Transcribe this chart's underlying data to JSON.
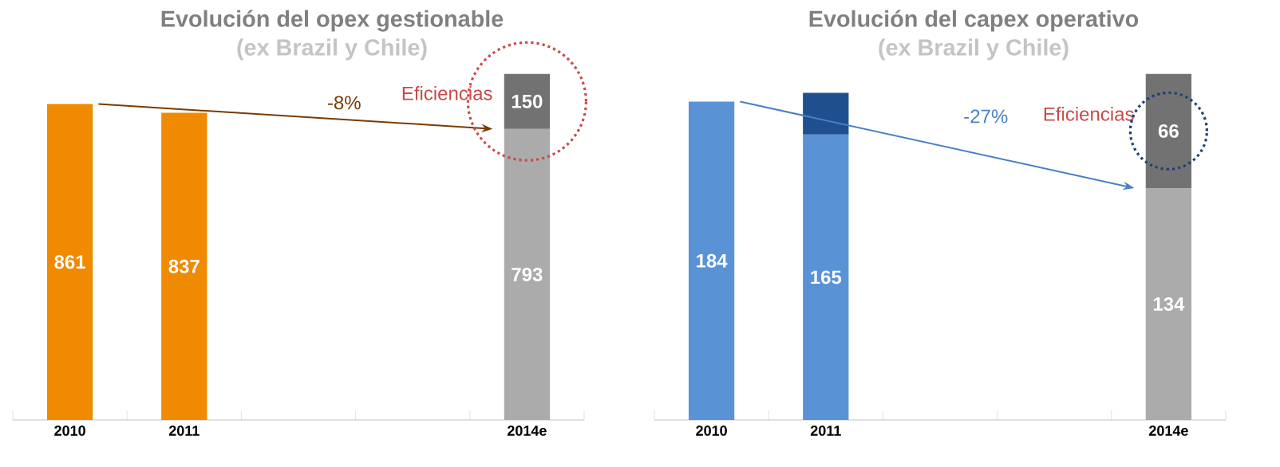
{
  "chart_data": [
    {
      "type": "bar",
      "title": "Evolución del opex gestionable",
      "subtitle": "(ex Brazil y Chile)",
      "categories": [
        "2010",
        "2011",
        null,
        null,
        "2014e"
      ],
      "stacked": true,
      "series": [
        {
          "colors": [
            "#f08a00",
            "#f08a00",
            null,
            null,
            "#ababab"
          ],
          "values": [
            861,
            837,
            null,
            null,
            793
          ],
          "value_labels": [
            "861",
            "837",
            null,
            null,
            "793"
          ]
        },
        {
          "colors": [
            null,
            null,
            null,
            null,
            "#727272"
          ],
          "values": [
            null,
            null,
            null,
            null,
            150
          ],
          "value_labels": [
            null,
            null,
            null,
            null,
            "150"
          ]
        }
      ],
      "annotations": [
        "-8%",
        "Eficiencias"
      ]
    },
    {
      "type": "bar",
      "title": "Evolución del capex operativo",
      "subtitle": "(ex Brazil y Chile)",
      "categories": [
        "2010",
        "2011",
        null,
        null,
        "2014e"
      ],
      "stacked": true,
      "series": [
        {
          "colors": [
            "#5a92d6",
            "#5a92d6",
            null,
            null,
            "#ababab"
          ],
          "values": [
            184,
            165,
            null,
            null,
            134
          ],
          "value_labels": [
            "184",
            "165",
            null,
            null,
            "134"
          ]
        },
        {
          "colors": [
            null,
            "#1f4f8f",
            null,
            null,
            "#727272"
          ],
          "values": [
            null,
            24,
            null,
            null,
            66
          ],
          "value_labels": [
            null,
            null,
            null,
            null,
            "66"
          ]
        }
      ],
      "annotations": [
        "-27%",
        "Eficiencias"
      ]
    }
  ]
}
